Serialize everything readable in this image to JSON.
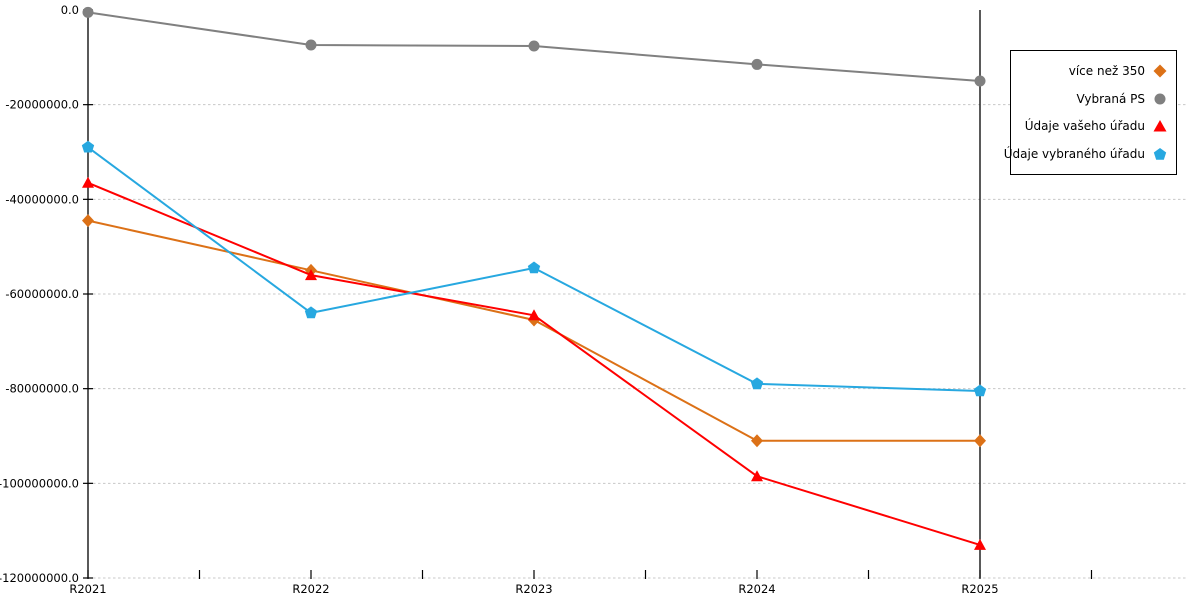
{
  "chart_data": {
    "type": "line",
    "categories": [
      "R2021",
      "R2022",
      "R2023",
      "R2024",
      "R2025"
    ],
    "series": [
      {
        "name": "více než 350",
        "marker": "diamond",
        "color": "#DC7117",
        "values": [
          -44500000,
          -55000000,
          -65500000,
          -91000000,
          -91000000
        ]
      },
      {
        "name": "Vybraná PS",
        "marker": "circle",
        "color": "#808080",
        "values": [
          -500000,
          -7400000,
          -7600000,
          -11500000,
          -15000000
        ]
      },
      {
        "name": "Údaje vašeho úřadu",
        "marker": "triangle-up",
        "color": "#FF0000",
        "values": [
          -36500000,
          -56000000,
          -64500000,
          -98500000,
          -113000000
        ]
      },
      {
        "name": "Údaje vybraného úřadu",
        "marker": "pentagon",
        "color": "#27A8E0",
        "values": [
          -29000000,
          -64000000,
          -54500000,
          -79000000,
          -80500000
        ]
      }
    ],
    "ylim": [
      -120000000,
      0
    ],
    "ytick_step": 20000000,
    "ytick_labels": [
      "0.0",
      "-20000000.0",
      "-40000000.0",
      "-60000000.0",
      "-80000000.0",
      "-100000000.0",
      "-120000000.0"
    ],
    "xtick_labels": [
      "R2021",
      "R2022",
      "R2023",
      "R2024",
      "R2025"
    ],
    "grid": "horizontal-dashed",
    "grid_color": "#c8c8c8",
    "axis_color": "#000000",
    "vline_at_category": "R2025",
    "legend_position": "upper-right"
  }
}
